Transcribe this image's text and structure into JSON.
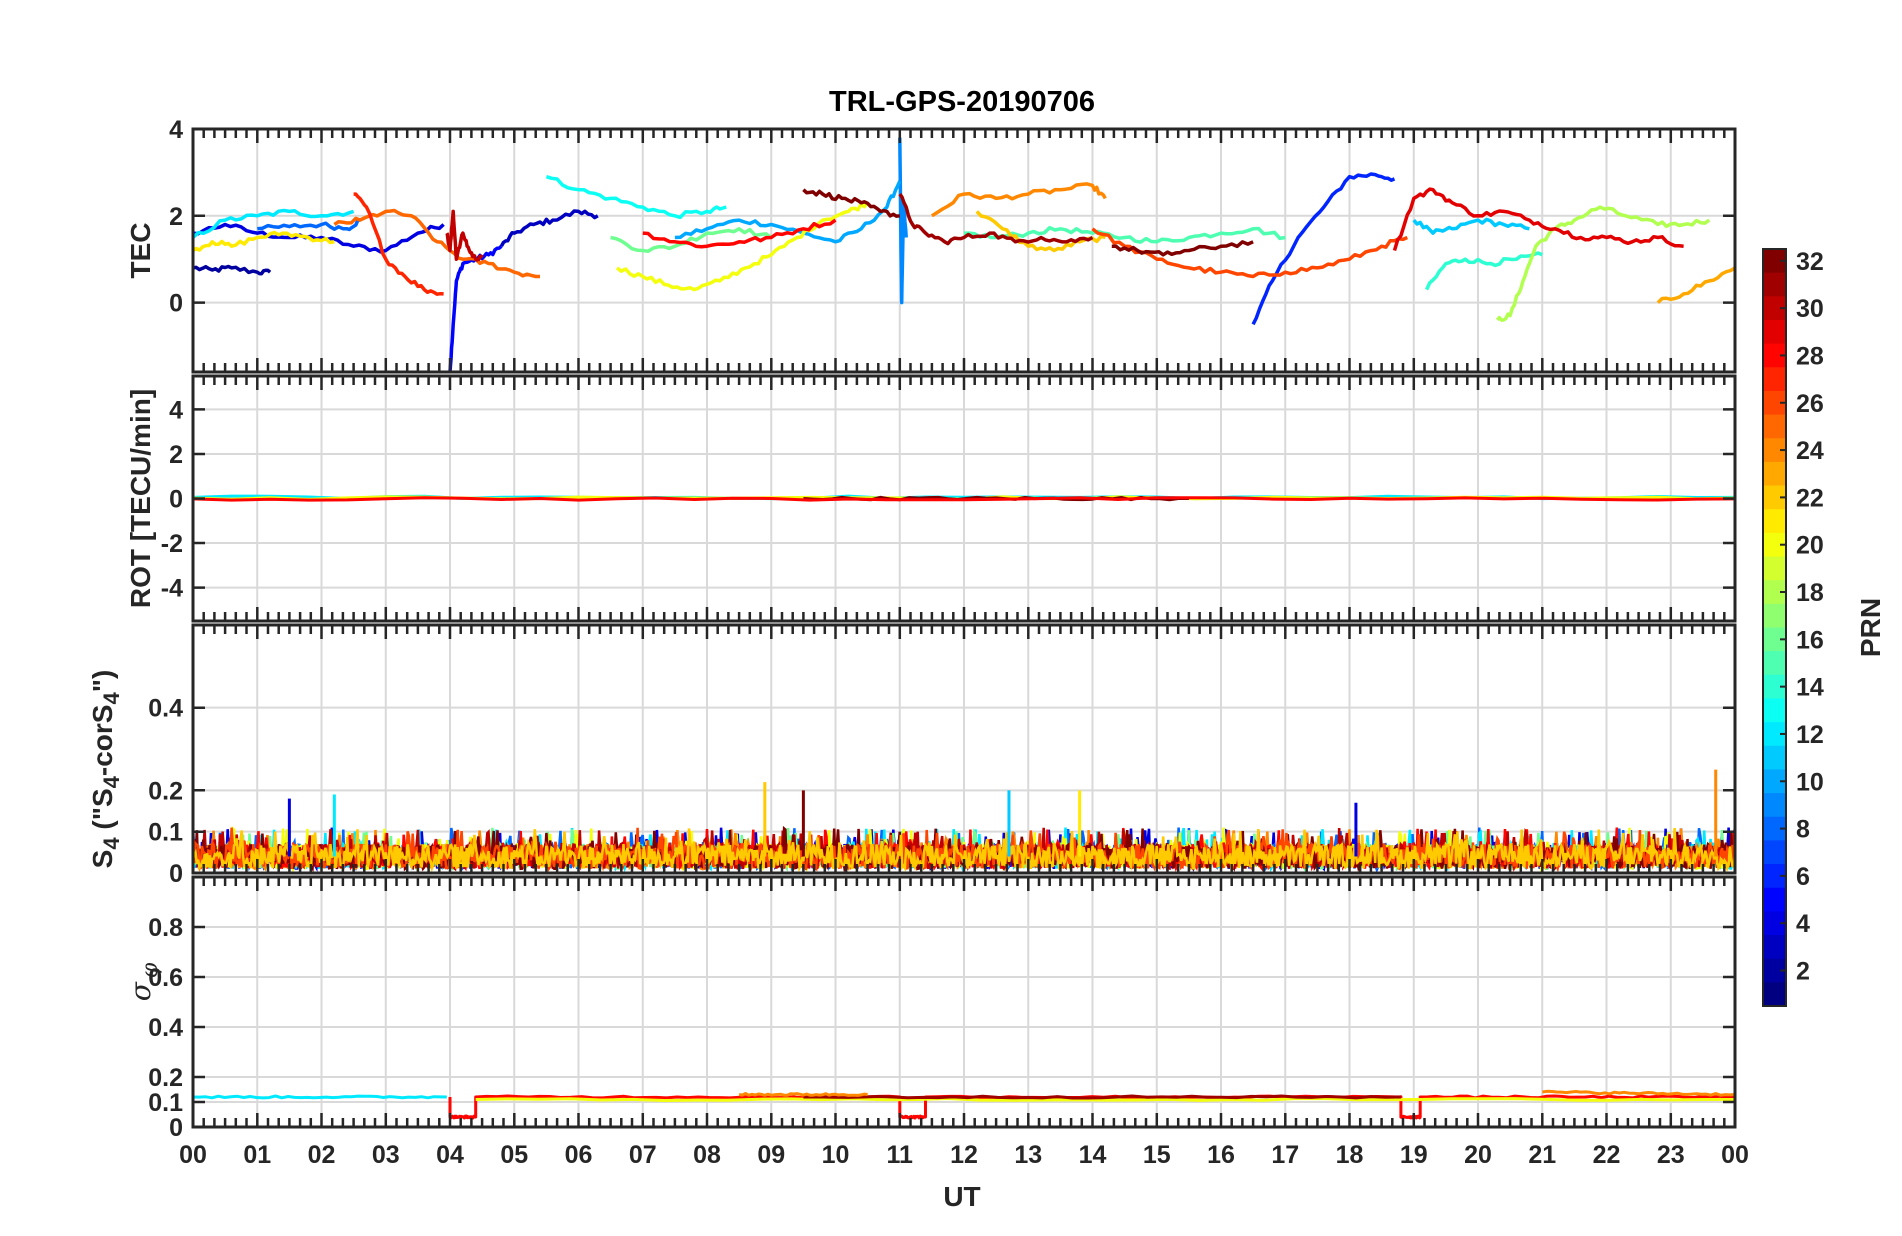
{
  "chart_data": {
    "type": "line",
    "title": "TRL-GPS-20190706",
    "xlabel": "UT",
    "x_ticks": [
      "00",
      "01",
      "02",
      "03",
      "04",
      "05",
      "06",
      "07",
      "08",
      "09",
      "10",
      "11",
      "12",
      "13",
      "14",
      "15",
      "16",
      "17",
      "18",
      "19",
      "20",
      "21",
      "22",
      "23",
      "00"
    ],
    "xlim": [
      0,
      24
    ],
    "grid": true,
    "panels": [
      {
        "key": "tec",
        "ylabel": "TEC",
        "ylim": [
          -1.6,
          4
        ],
        "y_ticks": [
          {
            "v": 0,
            "t": "0"
          },
          {
            "v": 2,
            "t": "2"
          },
          {
            "v": 4,
            "t": "4"
          }
        ],
        "series": [
          {
            "prn": 2,
            "x": [
              0.0,
              0.3,
              0.6,
              1.0,
              1.2
            ],
            "y": [
              0.8,
              0.75,
              0.8,
              0.7,
              0.7
            ]
          },
          {
            "prn": 4,
            "x": [
              0.0,
              0.5,
              1.0,
              1.5,
              2.0,
              2.5,
              3.0,
              3.5,
              3.9
            ],
            "y": [
              1.6,
              1.8,
              1.6,
              1.5,
              1.5,
              1.3,
              1.2,
              1.6,
              1.8
            ]
          },
          {
            "prn": 5,
            "x": [
              4.0,
              4.05,
              4.1,
              4.2,
              4.4,
              4.6,
              4.8
            ],
            "y": [
              -1.6,
              -0.5,
              0.5,
              0.9,
              1.0,
              1.1,
              1.3
            ]
          },
          {
            "prn": 3,
            "x": [
              4.8,
              5.0,
              5.3,
              5.6,
              6.0,
              6.3
            ],
            "y": [
              1.3,
              1.6,
              1.8,
              1.9,
              2.1,
              2.0
            ]
          },
          {
            "prn": 6,
            "x": [
              16.5,
              16.8,
              17.2,
              17.6,
              18.0,
              18.4,
              18.7
            ],
            "y": [
              -0.5,
              0.5,
              1.5,
              2.2,
              2.9,
              2.95,
              2.85
            ]
          },
          {
            "prn": 8,
            "x": [
              1.0,
              1.5,
              2.0,
              2.4,
              2.6
            ],
            "y": [
              1.7,
              1.75,
              1.8,
              1.7,
              1.9
            ]
          },
          {
            "prn": 9,
            "x": [
              11.0,
              11.03,
              11.06,
              11.1
            ],
            "y": [
              3.8,
              0.0,
              2.3,
              1.5
            ]
          },
          {
            "prn": 10,
            "x": [
              7.5,
              8.0,
              8.5,
              9.0,
              9.5,
              10.0,
              10.4,
              10.8,
              11.0
            ],
            "y": [
              1.5,
              1.7,
              1.9,
              1.8,
              1.6,
              1.4,
              1.7,
              2.2,
              2.8
            ]
          },
          {
            "prn": 11,
            "x": [
              19.0,
              19.3,
              19.6,
              20.0,
              20.4,
              20.8
            ],
            "y": [
              1.9,
              1.6,
              1.7,
              1.9,
              1.8,
              1.7
            ]
          },
          {
            "prn": 12,
            "x": [
              0.0,
              0.5,
              1.0,
              1.5,
              2.0,
              2.5
            ],
            "y": [
              1.5,
              1.9,
              2.0,
              2.1,
              2.0,
              2.1
            ]
          },
          {
            "prn": 13,
            "x": [
              5.5,
              6.0,
              6.5,
              7.0,
              7.5,
              8.0,
              8.3
            ],
            "y": [
              2.9,
              2.6,
              2.4,
              2.2,
              2.0,
              2.1,
              2.2
            ]
          },
          {
            "prn": 14,
            "x": [
              19.2,
              19.5,
              19.8,
              20.2,
              20.6,
              21.0
            ],
            "y": [
              0.3,
              0.9,
              1.0,
              0.9,
              1.0,
              1.1
            ]
          },
          {
            "prn": 15,
            "x": [
              12.0,
              12.5,
              13.0,
              13.5,
              14.0,
              14.5,
              15.0,
              15.5,
              16.0,
              16.5,
              17.0
            ],
            "y": [
              1.6,
              1.5,
              1.6,
              1.7,
              1.6,
              1.5,
              1.4,
              1.5,
              1.6,
              1.7,
              1.5
            ]
          },
          {
            "prn": 16,
            "x": [
              6.5,
              7.0,
              7.5,
              8.0,
              8.5,
              9.0
            ],
            "y": [
              1.5,
              1.2,
              1.3,
              1.6,
              1.7,
              1.5
            ]
          },
          {
            "prn": 18,
            "x": [
              20.3,
              20.5,
              20.7,
              20.9,
              21.2,
              21.5,
              21.9,
              22.3,
              22.8,
              23.2,
              23.6
            ],
            "y": [
              -0.4,
              -0.3,
              0.5,
              1.3,
              1.7,
              1.9,
              2.2,
              2.0,
              1.8,
              1.8,
              1.9
            ]
          },
          {
            "prn": 20,
            "x": [
              6.6,
              7.0,
              7.4,
              7.8,
              8.2,
              8.6,
              9.0,
              9.4,
              9.8,
              10.2,
              10.5
            ],
            "y": [
              0.8,
              0.6,
              0.4,
              0.3,
              0.5,
              0.8,
              1.1,
              1.5,
              1.9,
              2.1,
              2.3
            ]
          },
          {
            "prn": 21,
            "x": [
              0.0,
              0.3,
              0.6,
              1.0,
              1.4,
              1.8,
              2.2
            ],
            "y": [
              1.2,
              1.4,
              1.3,
              1.5,
              1.6,
              1.5,
              1.4
            ]
          },
          {
            "prn": 22,
            "x": [
              12.2,
              12.6,
              13.0,
              13.4,
              13.8,
              14.2
            ],
            "y": [
              2.1,
              1.7,
              1.3,
              1.2,
              1.4,
              1.5
            ]
          },
          {
            "prn": 23,
            "x": [
              22.8,
              23.2,
              23.6,
              24.0
            ],
            "y": [
              0.0,
              0.2,
              0.5,
              0.8
            ]
          },
          {
            "prn": 24,
            "x": [
              11.5,
              12.0,
              12.5,
              13.0,
              13.5,
              14.0,
              14.2
            ],
            "y": [
              2.0,
              2.5,
              2.4,
              2.5,
              2.6,
              2.7,
              2.4
            ]
          },
          {
            "prn": 25,
            "x": [
              2.2,
              2.6,
              3.0,
              3.4,
              3.8,
              4.2,
              4.6,
              5.0,
              5.4
            ],
            "y": [
              1.8,
              1.9,
              2.1,
              2.0,
              1.4,
              1.0,
              0.9,
              0.7,
              0.6
            ]
          },
          {
            "prn": 26,
            "x": [
              14.0,
              14.5,
              15.0,
              15.5,
              16.0,
              16.5,
              17.0,
              17.5,
              18.0,
              18.5,
              18.9
            ],
            "y": [
              1.7,
              1.3,
              1.0,
              0.8,
              0.7,
              0.6,
              0.7,
              0.8,
              1.0,
              1.3,
              1.5
            ]
          },
          {
            "prn": 27,
            "x": [
              2.5,
              2.7,
              3.0,
              3.3,
              3.6,
              3.9
            ],
            "y": [
              2.5,
              2.2,
              1.0,
              0.6,
              0.3,
              0.2
            ]
          },
          {
            "prn": 28,
            "x": [
              7.0,
              7.5,
              8.0,
              8.5,
              9.0,
              9.5,
              10.0
            ],
            "y": [
              1.6,
              1.4,
              1.3,
              1.4,
              1.5,
              1.7,
              1.9
            ]
          },
          {
            "prn": 29,
            "x": [
              18.7,
              19.0,
              19.3,
              19.6,
              20.0,
              20.4,
              20.8,
              21.2,
              21.6,
              22.0,
              22.4,
              22.8,
              23.2
            ],
            "y": [
              1.2,
              2.4,
              2.6,
              2.3,
              2.0,
              2.1,
              1.9,
              1.7,
              1.5,
              1.5,
              1.4,
              1.5,
              1.3
            ]
          },
          {
            "prn": 30,
            "x": [
              3.95,
              4.0,
              4.05,
              4.1,
              4.2,
              4.3,
              4.4,
              4.5
            ],
            "y": [
              1.6,
              1.2,
              2.1,
              1.0,
              1.6,
              1.2,
              1.0,
              1.1
            ]
          },
          {
            "prn": 31,
            "x": [
              11.0,
              11.2,
              11.4,
              11.7,
              12.0,
              12.4,
              12.8,
              13.2,
              13.6,
              14.0
            ],
            "y": [
              2.5,
              1.8,
              1.6,
              1.4,
              1.5,
              1.6,
              1.4,
              1.5,
              1.4,
              1.5
            ]
          },
          {
            "prn": 32,
            "x": [
              9.5,
              9.8,
              10.1,
              10.4,
              10.7,
              11.0
            ],
            "y": [
              2.6,
              2.5,
              2.4,
              2.3,
              2.1,
              2.0
            ]
          },
          {
            "prn": 32,
            "x": [
              14.3,
              14.7,
              15.1,
              15.5,
              16.0,
              16.5
            ],
            "y": [
              1.3,
              1.2,
              1.1,
              1.2,
              1.3,
              1.4
            ]
          }
        ]
      },
      {
        "key": "rot",
        "ylabel": "ROT [TECU/min]",
        "ylim": [
          -5.5,
          5.5
        ],
        "y_ticks": [
          {
            "v": -4,
            "t": "-4"
          },
          {
            "v": -2,
            "t": "-2"
          },
          {
            "v": 0,
            "t": "0"
          },
          {
            "v": 2,
            "t": "2"
          },
          {
            "v": 4,
            "t": "4"
          }
        ],
        "series": [
          {
            "prn": 12,
            "x": [
              0,
              24
            ],
            "y": [
              0.05,
              0.05
            ]
          },
          {
            "prn": 20,
            "x": [
              0,
              24
            ],
            "y": [
              0.02,
              0.02
            ]
          },
          {
            "prn": 32,
            "x": [
              9.5,
              15.5
            ],
            "y": [
              0.0,
              0.0
            ]
          },
          {
            "prn": 28,
            "x": [
              0,
              24
            ],
            "y": [
              -0.02,
              -0.02
            ]
          }
        ]
      },
      {
        "key": "s4",
        "ylabel": "S4 (\"S4-corS4\")",
        "ylim": [
          0,
          0.6
        ],
        "y_ticks": [
          {
            "v": 0,
            "t": "0"
          },
          {
            "v": 0.1,
            "t": "0.1"
          },
          {
            "v": 0.2,
            "t": "0.2"
          },
          {
            "v": 0.4,
            "t": "0.4"
          }
        ],
        "band": [
          0.0,
          0.11
        ],
        "peaks": [
          {
            "prn": 22,
            "x": 8.9,
            "y": 0.22
          },
          {
            "prn": 32,
            "x": 9.5,
            "y": 0.2
          },
          {
            "prn": 4,
            "x": 1.5,
            "y": 0.18
          },
          {
            "prn": 12,
            "x": 2.2,
            "y": 0.19
          },
          {
            "prn": 11,
            "x": 12.7,
            "y": 0.2
          },
          {
            "prn": 21,
            "x": 13.8,
            "y": 0.2
          },
          {
            "prn": 4,
            "x": 18.1,
            "y": 0.17
          },
          {
            "prn": 24,
            "x": 23.7,
            "y": 0.25
          }
        ]
      },
      {
        "key": "sigma",
        "ylabel": "σ φ",
        "ylim": [
          0,
          1
        ],
        "y_ticks": [
          {
            "v": 0,
            "t": "0"
          },
          {
            "v": 0.1,
            "t": "0.1"
          },
          {
            "v": 0.2,
            "t": "0.2"
          },
          {
            "v": 0.4,
            "t": "0.4"
          },
          {
            "v": 0.6,
            "t": "0.6"
          },
          {
            "v": 0.8,
            "t": "0.8"
          }
        ],
        "series": [
          {
            "prn": 12,
            "x": [
              0,
              3.95
            ],
            "y": [
              0.12,
              0.12
            ]
          },
          {
            "prn": 28,
            "x": [
              4.0,
              4.0,
              4.4,
              4.4,
              11.0,
              11.0,
              11.4,
              11.4,
              18.8,
              18.8,
              19.1,
              19.1,
              24
            ],
            "y": [
              0.12,
              0.04,
              0.04,
              0.12,
              0.12,
              0.04,
              0.04,
              0.12,
              0.12,
              0.04,
              0.04,
              0.12,
              0.12
            ]
          },
          {
            "prn": 20,
            "x": [
              4.4,
              24
            ],
            "y": [
              0.11,
              0.11
            ]
          },
          {
            "prn": 31,
            "x": [
              9.5,
              18.8
            ],
            "y": [
              0.12,
              0.12
            ]
          },
          {
            "prn": 24,
            "x": [
              8.5,
              10.5
            ],
            "y": [
              0.13,
              0.13
            ]
          },
          {
            "prn": 24,
            "x": [
              21.0,
              24.0
            ],
            "y": [
              0.14,
              0.13
            ]
          }
        ]
      }
    ],
    "colorbar": {
      "label": "PRN",
      "range": [
        1,
        32
      ],
      "ticks": [
        "2",
        "4",
        "6",
        "8",
        "10",
        "12",
        "14",
        "16",
        "18",
        "20",
        "22",
        "24",
        "26",
        "28",
        "30",
        "32"
      ],
      "colormap": "jet"
    }
  }
}
